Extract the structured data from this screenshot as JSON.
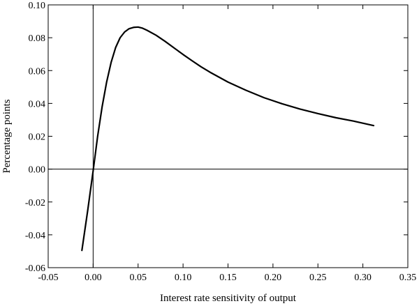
{
  "chart_data": {
    "type": "line",
    "title": "",
    "xlabel": "Interest rate sensitivity of output",
    "ylabel": "Percentage points",
    "xlim": [
      -0.05,
      0.35
    ],
    "ylim": [
      -0.06,
      0.1
    ],
    "xticks": [
      -0.05,
      0.0,
      0.05,
      0.1,
      0.15,
      0.2,
      0.25,
      0.3,
      0.35
    ],
    "xtick_labels": [
      "-0.05",
      "0.00",
      "0.05",
      "0.10",
      "0.15",
      "0.20",
      "0.25",
      "0.30",
      "0.35"
    ],
    "yticks": [
      -0.06,
      -0.04,
      -0.02,
      0.0,
      0.02,
      0.04,
      0.06,
      0.08,
      0.1
    ],
    "ytick_labels": [
      "-0.06",
      "-0.04",
      "-0.02",
      "0.00",
      "0.02",
      "0.04",
      "0.06",
      "0.08",
      "0.10"
    ],
    "grid": false,
    "reference_lines": {
      "x": 0.0,
      "y": 0.0
    },
    "series": [
      {
        "x": [
          -0.0125,
          -0.006,
          0.0,
          0.005,
          0.01,
          0.015,
          0.02,
          0.025,
          0.03,
          0.035,
          0.04,
          0.045,
          0.05,
          0.055,
          0.06,
          0.07,
          0.08,
          0.09,
          0.1,
          0.11,
          0.12,
          0.13,
          0.15,
          0.17,
          0.19,
          0.21,
          0.23,
          0.25,
          0.27,
          0.29,
          0.312
        ],
        "y": [
          -0.0495,
          -0.025,
          -0.001,
          0.02,
          0.038,
          0.053,
          0.065,
          0.074,
          0.08,
          0.0835,
          0.0855,
          0.0863,
          0.0865,
          0.0858,
          0.0845,
          0.0815,
          0.0778,
          0.0738,
          0.0698,
          0.066,
          0.0623,
          0.059,
          0.053,
          0.048,
          0.0435,
          0.0398,
          0.0366,
          0.0338,
          0.0313,
          0.0292,
          0.0265
        ],
        "color": "#000000"
      }
    ]
  }
}
